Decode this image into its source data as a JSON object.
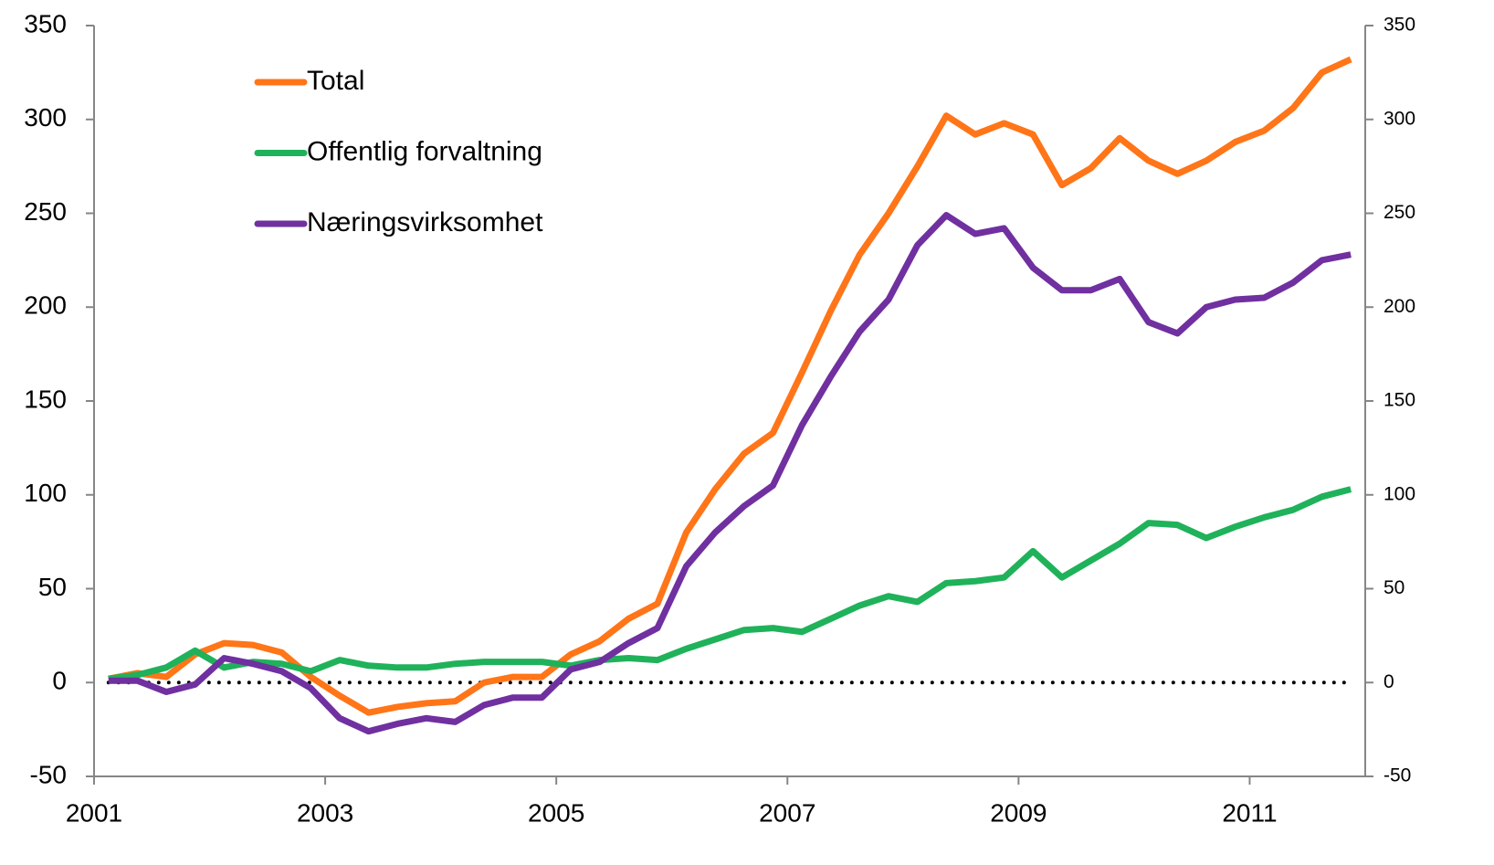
{
  "chart_data": {
    "type": "line",
    "x": [
      2001.125,
      2001.375,
      2001.625,
      2001.875,
      2002.125,
      2002.375,
      2002.625,
      2002.875,
      2003.125,
      2003.375,
      2003.625,
      2003.875,
      2004.125,
      2004.375,
      2004.625,
      2004.875,
      2005.125,
      2005.375,
      2005.625,
      2005.875,
      2006.125,
      2006.375,
      2006.625,
      2006.875,
      2007.125,
      2007.375,
      2007.625,
      2007.875,
      2008.125,
      2008.375,
      2008.625,
      2008.875,
      2009.125,
      2009.375,
      2009.625,
      2009.875,
      2010.125,
      2010.375,
      2010.625,
      2010.875,
      2011.125,
      2011.375,
      2011.625,
      2011.875
    ],
    "series": [
      {
        "name": "Total",
        "color": "#ff7518",
        "values": [
          2,
          5,
          3,
          15,
          21,
          20,
          16,
          3,
          -7,
          -16,
          -13,
          -11,
          -10,
          0,
          3,
          3,
          15,
          22,
          34,
          42,
          80,
          103,
          122,
          133,
          165,
          198,
          228,
          250,
          275,
          302,
          292,
          298,
          292,
          265,
          274,
          290,
          278,
          271,
          278,
          288,
          294,
          306,
          325,
          332
        ]
      },
      {
        "name": "Offentlig forvaltning",
        "color": "#1fb25a",
        "values": [
          2,
          4,
          8,
          17,
          8,
          11,
          10,
          6,
          12,
          9,
          8,
          8,
          10,
          11,
          11,
          11,
          9,
          12,
          13,
          12,
          18,
          23,
          28,
          29,
          27,
          34,
          41,
          46,
          43,
          53,
          54,
          56,
          70,
          56,
          65,
          74,
          85,
          84,
          77,
          83,
          88,
          92,
          99,
          103
        ]
      },
      {
        "name": "Næringsvirksomhet",
        "color": "#7030a0",
        "values": [
          1,
          1,
          -5,
          -1,
          13,
          10,
          6,
          -3,
          -19,
          -26,
          -22,
          -19,
          -21,
          -12,
          -8,
          -8,
          7,
          11,
          21,
          29,
          62,
          80,
          94,
          105,
          137,
          163,
          187,
          204,
          233,
          249,
          239,
          242,
          221,
          209,
          209,
          215,
          192,
          186,
          200,
          204,
          205,
          213,
          225,
          228
        ]
      }
    ],
    "xlim": [
      2001,
      2012
    ],
    "xticks": [
      2001,
      2003,
      2005,
      2007,
      2009,
      2011
    ],
    "ylim": [
      -50,
      350
    ],
    "yticks": [
      -50,
      0,
      50,
      100,
      150,
      200,
      250,
      300,
      350
    ],
    "y2lim": [
      -50,
      350
    ],
    "y2ticks": [
      -50,
      0,
      50,
      100,
      150,
      200,
      250,
      300,
      350
    ],
    "reference_line": 0,
    "legend": "upper-left",
    "grid": false
  }
}
